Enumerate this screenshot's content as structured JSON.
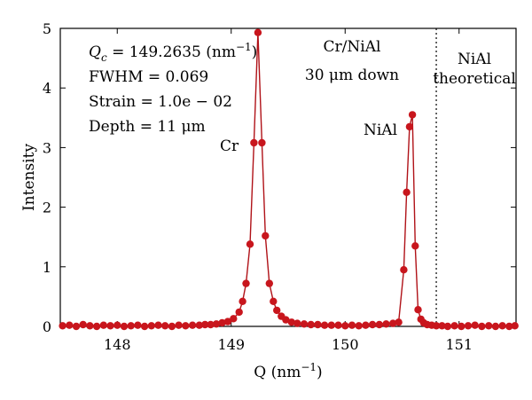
{
  "chart_data": {
    "type": "scatter",
    "xlabel": "Q (nm",
    "xlabel_sup": "−1",
    "xlabel_close": ")",
    "ylabel": "Intensity",
    "xlim": [
      147.5,
      151.5
    ],
    "ylim": [
      0,
      5
    ],
    "xticks": [
      "148",
      "149",
      "150",
      "151"
    ],
    "xtick_values": [
      148,
      149,
      150,
      151
    ],
    "yticks": [
      "0",
      "1",
      "2",
      "3",
      "4",
      "5"
    ],
    "ytick_values": [
      0,
      1,
      2,
      3,
      4,
      5
    ],
    "grid": false,
    "marker_color": "#c8161d",
    "line_color": "#b01218",
    "annotations": {
      "qc": {
        "label": "Q",
        "sub": "c",
        "value": " = 149.2635 (nm",
        "sup": "−1",
        "close": ")"
      },
      "fwhm": "FWHM = 0.069",
      "strain": "Strain = 1.0e − 02",
      "depth": "Depth = 11 μm",
      "cr": "Cr",
      "nial": "NiAl",
      "crnial_line1": "Cr/NiAl",
      "crnial_line2": "30 μm down",
      "theory_line1": "NiAl",
      "theory_line2": "theoretical"
    },
    "theoretical_line_x": 150.8,
    "series": [
      {
        "points": [
          [
            147.52,
            0.01
          ],
          [
            147.58,
            0.02
          ],
          [
            147.64,
            0.0
          ],
          [
            147.7,
            0.03
          ],
          [
            147.76,
            0.01
          ],
          [
            147.82,
            0.0
          ],
          [
            147.88,
            0.02
          ],
          [
            147.94,
            0.01
          ],
          [
            148.0,
            0.02
          ],
          [
            148.06,
            0.0
          ],
          [
            148.12,
            0.01
          ],
          [
            148.18,
            0.02
          ],
          [
            148.24,
            0.0
          ],
          [
            148.3,
            0.01
          ],
          [
            148.36,
            0.02
          ],
          [
            148.42,
            0.01
          ],
          [
            148.48,
            0.0
          ],
          [
            148.54,
            0.02
          ],
          [
            148.6,
            0.01
          ],
          [
            148.66,
            0.02
          ],
          [
            148.72,
            0.02
          ],
          [
            148.77,
            0.03
          ],
          [
            148.82,
            0.03
          ],
          [
            148.87,
            0.04
          ],
          [
            148.92,
            0.06
          ],
          [
            148.97,
            0.08
          ],
          [
            149.02,
            0.13
          ],
          [
            149.07,
            0.24
          ],
          [
            149.1,
            0.42
          ],
          [
            149.13,
            0.72
          ],
          [
            149.165,
            1.38
          ],
          [
            149.2,
            3.08
          ],
          [
            149.235,
            4.93
          ],
          [
            149.27,
            3.08
          ],
          [
            149.3,
            1.52
          ],
          [
            149.335,
            0.72
          ],
          [
            149.37,
            0.42
          ],
          [
            149.4,
            0.27
          ],
          [
            149.44,
            0.17
          ],
          [
            149.48,
            0.11
          ],
          [
            149.53,
            0.07
          ],
          [
            149.58,
            0.05
          ],
          [
            149.64,
            0.04
          ],
          [
            149.7,
            0.03
          ],
          [
            149.76,
            0.03
          ],
          [
            149.82,
            0.02
          ],
          [
            149.88,
            0.02
          ],
          [
            149.94,
            0.02
          ],
          [
            150.0,
            0.01
          ],
          [
            150.06,
            0.02
          ],
          [
            150.12,
            0.01
          ],
          [
            150.18,
            0.02
          ],
          [
            150.24,
            0.03
          ],
          [
            150.3,
            0.03
          ],
          [
            150.36,
            0.04
          ],
          [
            150.42,
            0.05
          ],
          [
            150.47,
            0.07
          ],
          [
            150.515,
            0.95
          ],
          [
            150.54,
            2.25
          ],
          [
            150.565,
            3.35
          ],
          [
            150.59,
            3.55
          ],
          [
            150.615,
            1.35
          ],
          [
            150.64,
            0.28
          ],
          [
            150.665,
            0.12
          ],
          [
            150.69,
            0.06
          ],
          [
            150.72,
            0.03
          ],
          [
            150.76,
            0.02
          ],
          [
            150.8,
            0.01
          ],
          [
            150.85,
            0.01
          ],
          [
            150.9,
            0.0
          ],
          [
            150.96,
            0.01
          ],
          [
            151.02,
            0.0
          ],
          [
            151.08,
            0.01
          ],
          [
            151.14,
            0.02
          ],
          [
            151.2,
            0.0
          ],
          [
            151.26,
            0.01
          ],
          [
            151.32,
            0.0
          ],
          [
            151.38,
            0.01
          ],
          [
            151.44,
            0.0
          ],
          [
            151.49,
            0.01
          ]
        ]
      }
    ]
  }
}
